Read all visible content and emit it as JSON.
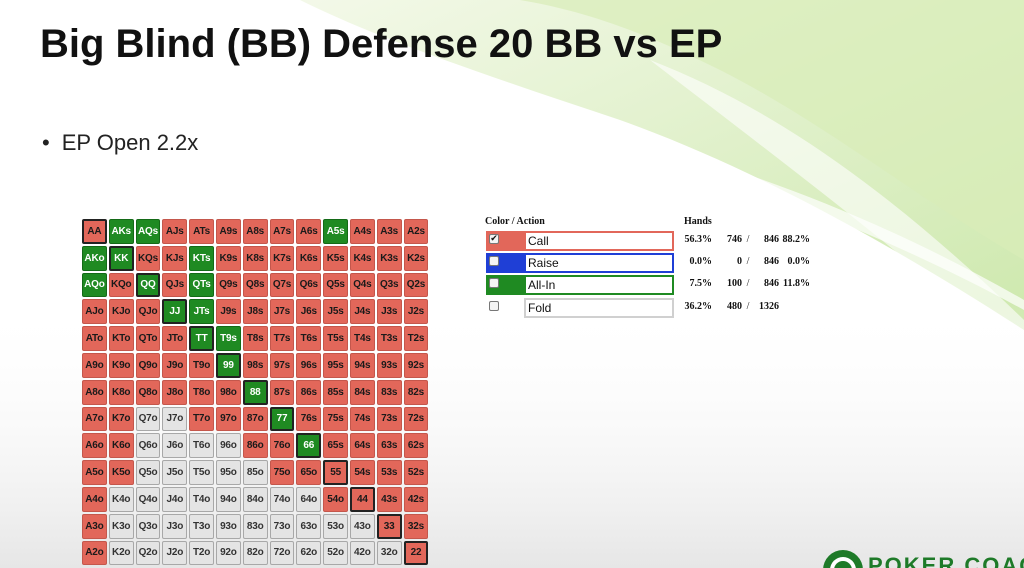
{
  "slide": {
    "title": "Big Blind (BB) Defense 20 BB vs EP",
    "bullet": "EP Open 2.2x"
  },
  "range_grid": {
    "rows": [
      [
        [
          "AA",
          "call",
          1
        ],
        [
          "AKs",
          "allin",
          0
        ],
        [
          "AQs",
          "allin",
          0
        ],
        [
          "AJs",
          "call",
          0
        ],
        [
          "ATs",
          "call",
          0
        ],
        [
          "A9s",
          "call",
          0
        ],
        [
          "A8s",
          "call",
          0
        ],
        [
          "A7s",
          "call",
          0
        ],
        [
          "A6s",
          "call",
          0
        ],
        [
          "A5s",
          "allin",
          0
        ],
        [
          "A4s",
          "call",
          0
        ],
        [
          "A3s",
          "call",
          0
        ],
        [
          "A2s",
          "call",
          0
        ]
      ],
      [
        [
          "AKo",
          "allin",
          0
        ],
        [
          "KK",
          "allin",
          1
        ],
        [
          "KQs",
          "call",
          0
        ],
        [
          "KJs",
          "call",
          0
        ],
        [
          "KTs",
          "allin",
          0
        ],
        [
          "K9s",
          "call",
          0
        ],
        [
          "K8s",
          "call",
          0
        ],
        [
          "K7s",
          "call",
          0
        ],
        [
          "K6s",
          "call",
          0
        ],
        [
          "K5s",
          "call",
          0
        ],
        [
          "K4s",
          "call",
          0
        ],
        [
          "K3s",
          "call",
          0
        ],
        [
          "K2s",
          "call",
          0
        ]
      ],
      [
        [
          "AQo",
          "allin",
          0
        ],
        [
          "KQo",
          "call",
          0
        ],
        [
          "QQ",
          "allin",
          1
        ],
        [
          "QJs",
          "call",
          0
        ],
        [
          "QTs",
          "allin",
          0
        ],
        [
          "Q9s",
          "call",
          0
        ],
        [
          "Q8s",
          "call",
          0
        ],
        [
          "Q7s",
          "call",
          0
        ],
        [
          "Q6s",
          "call",
          0
        ],
        [
          "Q5s",
          "call",
          0
        ],
        [
          "Q4s",
          "call",
          0
        ],
        [
          "Q3s",
          "call",
          0
        ],
        [
          "Q2s",
          "call",
          0
        ]
      ],
      [
        [
          "AJo",
          "call",
          0
        ],
        [
          "KJo",
          "call",
          0
        ],
        [
          "QJo",
          "call",
          0
        ],
        [
          "JJ",
          "allin",
          1
        ],
        [
          "JTs",
          "allin",
          0
        ],
        [
          "J9s",
          "call",
          0
        ],
        [
          "J8s",
          "call",
          0
        ],
        [
          "J7s",
          "call",
          0
        ],
        [
          "J6s",
          "call",
          0
        ],
        [
          "J5s",
          "call",
          0
        ],
        [
          "J4s",
          "call",
          0
        ],
        [
          "J3s",
          "call",
          0
        ],
        [
          "J2s",
          "call",
          0
        ]
      ],
      [
        [
          "ATo",
          "call",
          0
        ],
        [
          "KTo",
          "call",
          0
        ],
        [
          "QTo",
          "call",
          0
        ],
        [
          "JTo",
          "call",
          0
        ],
        [
          "TT",
          "allin",
          1
        ],
        [
          "T9s",
          "allin",
          0
        ],
        [
          "T8s",
          "call",
          0
        ],
        [
          "T7s",
          "call",
          0
        ],
        [
          "T6s",
          "call",
          0
        ],
        [
          "T5s",
          "call",
          0
        ],
        [
          "T4s",
          "call",
          0
        ],
        [
          "T3s",
          "call",
          0
        ],
        [
          "T2s",
          "call",
          0
        ]
      ],
      [
        [
          "A9o",
          "call",
          0
        ],
        [
          "K9o",
          "call",
          0
        ],
        [
          "Q9o",
          "call",
          0
        ],
        [
          "J9o",
          "call",
          0
        ],
        [
          "T9o",
          "call",
          0
        ],
        [
          "99",
          "allin",
          1
        ],
        [
          "98s",
          "call",
          0
        ],
        [
          "97s",
          "call",
          0
        ],
        [
          "96s",
          "call",
          0
        ],
        [
          "95s",
          "call",
          0
        ],
        [
          "94s",
          "call",
          0
        ],
        [
          "93s",
          "call",
          0
        ],
        [
          "92s",
          "call",
          0
        ]
      ],
      [
        [
          "A8o",
          "call",
          0
        ],
        [
          "K8o",
          "call",
          0
        ],
        [
          "Q8o",
          "call",
          0
        ],
        [
          "J8o",
          "call",
          0
        ],
        [
          "T8o",
          "call",
          0
        ],
        [
          "98o",
          "call",
          0
        ],
        [
          "88",
          "allin",
          1
        ],
        [
          "87s",
          "call",
          0
        ],
        [
          "86s",
          "call",
          0
        ],
        [
          "85s",
          "call",
          0
        ],
        [
          "84s",
          "call",
          0
        ],
        [
          "83s",
          "call",
          0
        ],
        [
          "82s",
          "call",
          0
        ]
      ],
      [
        [
          "A7o",
          "call",
          0
        ],
        [
          "K7o",
          "call",
          0
        ],
        [
          "Q7o",
          "fold",
          0
        ],
        [
          "J7o",
          "fold",
          0
        ],
        [
          "T7o",
          "call",
          0
        ],
        [
          "97o",
          "call",
          0
        ],
        [
          "87o",
          "call",
          0
        ],
        [
          "77",
          "allin",
          1
        ],
        [
          "76s",
          "call",
          0
        ],
        [
          "75s",
          "call",
          0
        ],
        [
          "74s",
          "call",
          0
        ],
        [
          "73s",
          "call",
          0
        ],
        [
          "72s",
          "call",
          0
        ]
      ],
      [
        [
          "A6o",
          "call",
          0
        ],
        [
          "K6o",
          "call",
          0
        ],
        [
          "Q6o",
          "fold",
          0
        ],
        [
          "J6o",
          "fold",
          0
        ],
        [
          "T6o",
          "fold",
          0
        ],
        [
          "96o",
          "fold",
          0
        ],
        [
          "86o",
          "call",
          0
        ],
        [
          "76o",
          "call",
          0
        ],
        [
          "66",
          "allin",
          1
        ],
        [
          "65s",
          "call",
          0
        ],
        [
          "64s",
          "call",
          0
        ],
        [
          "63s",
          "call",
          0
        ],
        [
          "62s",
          "call",
          0
        ]
      ],
      [
        [
          "A5o",
          "call",
          0
        ],
        [
          "K5o",
          "call",
          0
        ],
        [
          "Q5o",
          "fold",
          0
        ],
        [
          "J5o",
          "fold",
          0
        ],
        [
          "T5o",
          "fold",
          0
        ],
        [
          "95o",
          "fold",
          0
        ],
        [
          "85o",
          "fold",
          0
        ],
        [
          "75o",
          "call",
          0
        ],
        [
          "65o",
          "call",
          0
        ],
        [
          "55",
          "call",
          1
        ],
        [
          "54s",
          "call",
          0
        ],
        [
          "53s",
          "call",
          0
        ],
        [
          "52s",
          "call",
          0
        ]
      ],
      [
        [
          "A4o",
          "call",
          0
        ],
        [
          "K4o",
          "fold",
          0
        ],
        [
          "Q4o",
          "fold",
          0
        ],
        [
          "J4o",
          "fold",
          0
        ],
        [
          "T4o",
          "fold",
          0
        ],
        [
          "94o",
          "fold",
          0
        ],
        [
          "84o",
          "fold",
          0
        ],
        [
          "74o",
          "fold",
          0
        ],
        [
          "64o",
          "fold",
          0
        ],
        [
          "54o",
          "call",
          0
        ],
        [
          "44",
          "call",
          1
        ],
        [
          "43s",
          "call",
          0
        ],
        [
          "42s",
          "call",
          0
        ]
      ],
      [
        [
          "A3o",
          "call",
          0
        ],
        [
          "K3o",
          "fold",
          0
        ],
        [
          "Q3o",
          "fold",
          0
        ],
        [
          "J3o",
          "fold",
          0
        ],
        [
          "T3o",
          "fold",
          0
        ],
        [
          "93o",
          "fold",
          0
        ],
        [
          "83o",
          "fold",
          0
        ],
        [
          "73o",
          "fold",
          0
        ],
        [
          "63o",
          "fold",
          0
        ],
        [
          "53o",
          "fold",
          0
        ],
        [
          "43o",
          "fold",
          0
        ],
        [
          "33",
          "call",
          1
        ],
        [
          "32s",
          "call",
          0
        ]
      ],
      [
        [
          "A2o",
          "call",
          0
        ],
        [
          "K2o",
          "fold",
          0
        ],
        [
          "Q2o",
          "fold",
          0
        ],
        [
          "J2o",
          "fold",
          0
        ],
        [
          "T2o",
          "fold",
          0
        ],
        [
          "92o",
          "fold",
          0
        ],
        [
          "82o",
          "fold",
          0
        ],
        [
          "72o",
          "fold",
          0
        ],
        [
          "62o",
          "fold",
          0
        ],
        [
          "52o",
          "fold",
          0
        ],
        [
          "42o",
          "fold",
          0
        ],
        [
          "32o",
          "fold",
          0
        ],
        [
          "22",
          "call",
          1
        ]
      ]
    ]
  },
  "legend": {
    "header_color_action": "Color / Action",
    "header_hands": "Hands",
    "rows": [
      {
        "checked": true,
        "action": "Call",
        "color": "#e2675a",
        "pct": "56.3%",
        "count": "746",
        "sep": "/",
        "denom": "846",
        "pct2": "88.2%"
      },
      {
        "checked": false,
        "action": "Raise",
        "color": "#1f3fd6",
        "pct": "0.0%",
        "count": "0",
        "sep": "/",
        "denom": "846",
        "pct2": "0.0%"
      },
      {
        "checked": false,
        "action": "All-In",
        "color": "#1f8a22",
        "pct": "7.5%",
        "count": "100",
        "sep": "/",
        "denom": "846",
        "pct2": "11.8%"
      },
      {
        "checked": false,
        "action": "Fold",
        "color": "#dddddd",
        "pct": "36.2%",
        "count": "480",
        "sep": "/",
        "denom": "1326",
        "pct2": ""
      }
    ]
  },
  "logo": {
    "name": "POKER COACH",
    "accent": "#1e7a28"
  }
}
